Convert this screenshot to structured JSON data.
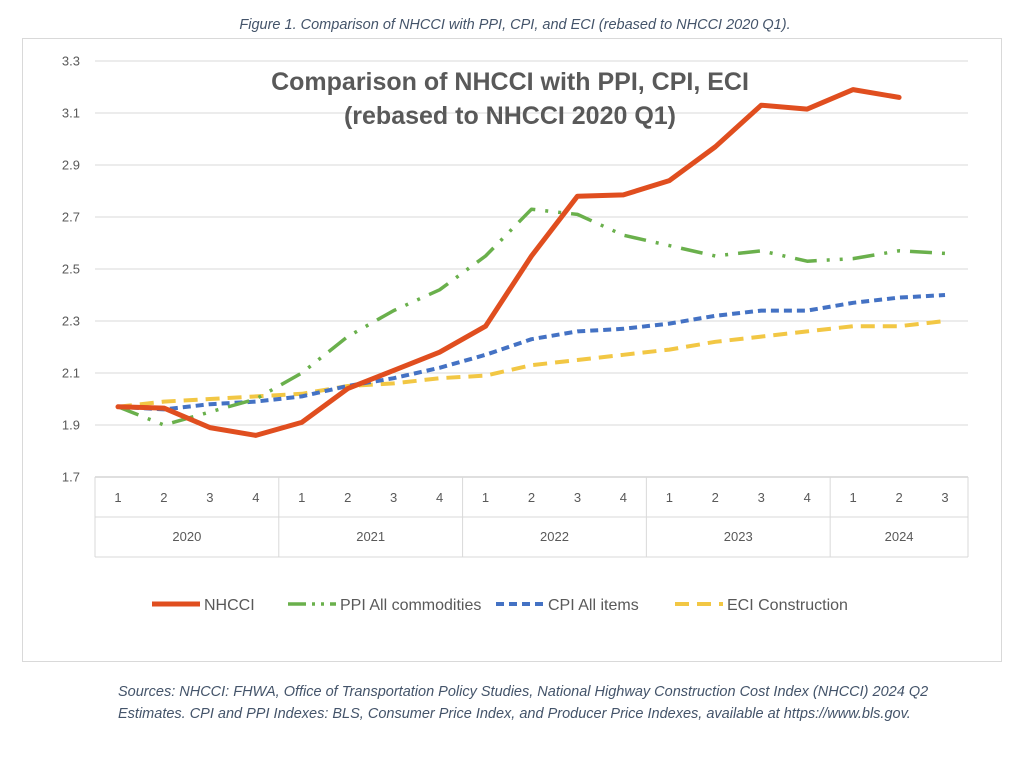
{
  "caption": "Figure 1. Comparison of NHCCI with PPI, CPI, and ECI (rebased to NHCCI 2020 Q1).",
  "sources": "Sources: NHCCI: FHWA, Office of Transportation Policy Studies, National Highway Construction Cost Index (NHCCI) 2024 Q2 Estimates. CPI and PPI Indexes: BLS, Consumer Price Index, and Producer Price Indexes, available at https://www.bls.gov.",
  "chart_data": {
    "type": "line",
    "title": [
      "Comparison of NHCCI with PPI, CPI, ECI",
      "(rebased to NHCCI 2020 Q1)"
    ],
    "xlabel": "",
    "ylabel": "",
    "ylim": [
      1.7,
      3.3
    ],
    "yticks": [
      "1.7",
      "1.9",
      "2.1",
      "2.3",
      "2.5",
      "2.7",
      "2.9",
      "3.1",
      "3.3"
    ],
    "grid": true,
    "legend": "bottom",
    "categories": [
      "1",
      "2",
      "3",
      "4",
      "1",
      "2",
      "3",
      "4",
      "1",
      "2",
      "3",
      "4",
      "1",
      "2",
      "3",
      "4",
      "1",
      "2",
      "3"
    ],
    "groups": [
      {
        "label": "2020",
        "count": 4
      },
      {
        "label": "2021",
        "count": 4
      },
      {
        "label": "2022",
        "count": 4
      },
      {
        "label": "2023",
        "count": 4
      },
      {
        "label": "2024",
        "count": 3
      }
    ],
    "series": [
      {
        "name": "NHCCI",
        "color": "#e04e1f",
        "style": "solid",
        "values": [
          1.97,
          1.965,
          1.89,
          1.86,
          1.91,
          2.04,
          2.11,
          2.18,
          2.28,
          2.55,
          2.78,
          2.785,
          2.84,
          2.97,
          3.13,
          3.115,
          3.19,
          3.16,
          null
        ]
      },
      {
        "name": "PPI All commodities",
        "color": "#6ab04c",
        "style": "dashdot",
        "values": [
          1.97,
          1.9,
          1.95,
          2.0,
          2.1,
          2.24,
          2.34,
          2.42,
          2.55,
          2.73,
          2.71,
          2.63,
          2.59,
          2.55,
          2.57,
          2.53,
          2.54,
          2.57,
          2.56
        ]
      },
      {
        "name": "CPI All items",
        "color": "#4472c4",
        "style": "dash",
        "values": [
          1.97,
          1.96,
          1.98,
          1.99,
          2.01,
          2.05,
          2.08,
          2.12,
          2.17,
          2.23,
          2.26,
          2.27,
          2.29,
          2.32,
          2.34,
          2.34,
          2.37,
          2.39,
          2.4
        ]
      },
      {
        "name": "ECI Construction",
        "color": "#f2c744",
        "style": "longdash",
        "values": [
          1.97,
          1.99,
          2.0,
          2.01,
          2.02,
          2.05,
          2.06,
          2.08,
          2.09,
          2.13,
          2.15,
          2.17,
          2.19,
          2.22,
          2.24,
          2.26,
          2.28,
          2.28,
          2.3
        ]
      }
    ]
  }
}
